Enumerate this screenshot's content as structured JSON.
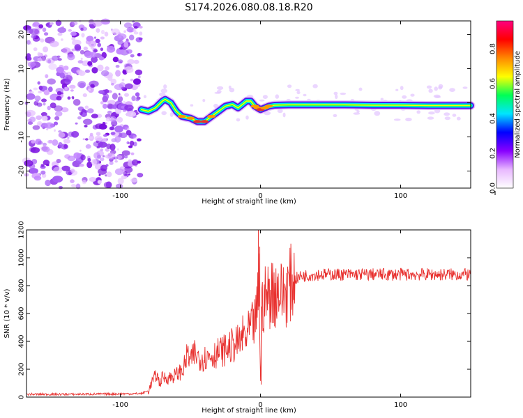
{
  "title": "S174.2026.080.08.18.R20",
  "colors": {
    "snr_line": "#e8302e",
    "scatter": "#7b2ee6",
    "track_core": "#e8302e",
    "track_outer": "#2a2af0"
  },
  "chart_data": [
    {
      "type": "heatmap",
      "xlabel": "Height of straight line (km)",
      "ylabel": "Frequency (Hz)",
      "xlim": [
        -167,
        150
      ],
      "ylim": [
        -25,
        24
      ],
      "xticks": [
        -100,
        0,
        100
      ],
      "yticks": [
        20,
        10,
        0,
        -10,
        -20
      ],
      "xtick_labels": [
        "-100",
        "0",
        "100"
      ],
      "ytick_labels": [
        "20",
        "10",
        "0",
        "-10",
        "-20"
      ],
      "colorbar": {
        "label": "Normalized spectral amplitude",
        "range": [
          0,
          0.96
        ],
        "ticks": [
          0.0,
          0.2,
          0.4,
          0.6,
          0.8
        ],
        "tick_labels": [
          "0.0",
          "0.2",
          "0.4",
          "0.6",
          "0.8"
        ],
        "colormap": [
          "#ffffff",
          "#e8b8ff",
          "#8800ff",
          "#0000ff",
          "#00e5ff",
          "#00ff55",
          "#ffff00",
          "#ff8800",
          "#ff0000",
          "#ff0080"
        ]
      },
      "noise_region": {
        "x_range": [
          -167,
          -85
        ],
        "y_range": [
          -25,
          24
        ]
      },
      "track": {
        "x": [
          -85,
          -80,
          -75,
          -70,
          -68,
          -64,
          -60,
          -56,
          -50,
          -45,
          -40,
          -35,
          -30,
          -25,
          -20,
          -16,
          -13,
          -10,
          -7,
          -4,
          -2,
          0,
          3,
          6,
          10,
          20,
          40,
          60,
          80,
          100,
          120,
          150
        ],
        "y": [
          -2.0,
          -2.5,
          -1.5,
          0.5,
          1.0,
          0.0,
          -2.5,
          -4.0,
          -4.5,
          -5.5,
          -5.5,
          -4.0,
          -2.5,
          -1.0,
          -0.5,
          -1.5,
          -0.5,
          0.5,
          0.5,
          -1.0,
          -1.5,
          -2.0,
          -1.5,
          -1.0,
          -0.7,
          -0.6,
          -0.6,
          -0.6,
          -0.7,
          -0.7,
          -0.8,
          -0.8
        ],
        "amplitude": [
          0.4,
          0.45,
          0.5,
          0.55,
          0.55,
          0.5,
          0.6,
          0.7,
          0.75,
          0.95,
          0.9,
          0.7,
          0.65,
          0.6,
          0.55,
          0.5,
          0.5,
          0.55,
          0.6,
          0.7,
          0.85,
          0.95,
          0.8,
          0.7,
          0.55,
          0.5,
          0.45,
          0.45,
          0.45,
          0.45,
          0.45,
          0.45
        ]
      }
    },
    {
      "type": "line",
      "xlabel": "Height of straight line (km)",
      "ylabel": "SNR (10 * v/v)",
      "xlim": [
        -167,
        150
      ],
      "ylim": [
        0,
        1200
      ],
      "xticks": [
        -100,
        0,
        100
      ],
      "yticks": [
        0,
        200,
        400,
        600,
        800,
        1000,
        1200
      ],
      "xtick_labels": [
        "-100",
        "0",
        "100"
      ],
      "ytick_labels": [
        "0",
        "200",
        "400",
        "600",
        "800",
        "1000",
        "1200"
      ],
      "series": [
        {
          "name": "SNR",
          "x": [
            -167,
            -140,
            -110,
            -85,
            -80,
            -77,
            -74,
            -72,
            -70,
            -65,
            -60,
            -55,
            -52,
            -50,
            -47,
            -45,
            -40,
            -35,
            -30,
            -25,
            -20,
            -15,
            -12,
            -10,
            -8,
            -5,
            -3,
            -2,
            -1,
            0,
            1,
            3,
            5,
            8,
            10,
            13,
            15,
            18,
            20,
            25,
            30,
            40,
            60,
            80,
            100,
            120,
            140,
            150
          ],
          "values": [
            20,
            20,
            22,
            25,
            45,
            120,
            160,
            100,
            140,
            140,
            160,
            200,
            310,
            250,
            320,
            290,
            280,
            300,
            320,
            340,
            370,
            390,
            450,
            420,
            480,
            520,
            560,
            700,
            900,
            100,
            650,
            700,
            720,
            760,
            750,
            780,
            730,
            760,
            800,
            850,
            870,
            880,
            880,
            880,
            880,
            880,
            880,
            880
          ]
        }
      ],
      "spikes": [
        {
          "x": -1.5,
          "value": 1200
        },
        {
          "x": -0.5,
          "value": 1080
        },
        {
          "x": 0.5,
          "value": 90
        }
      ]
    }
  ]
}
